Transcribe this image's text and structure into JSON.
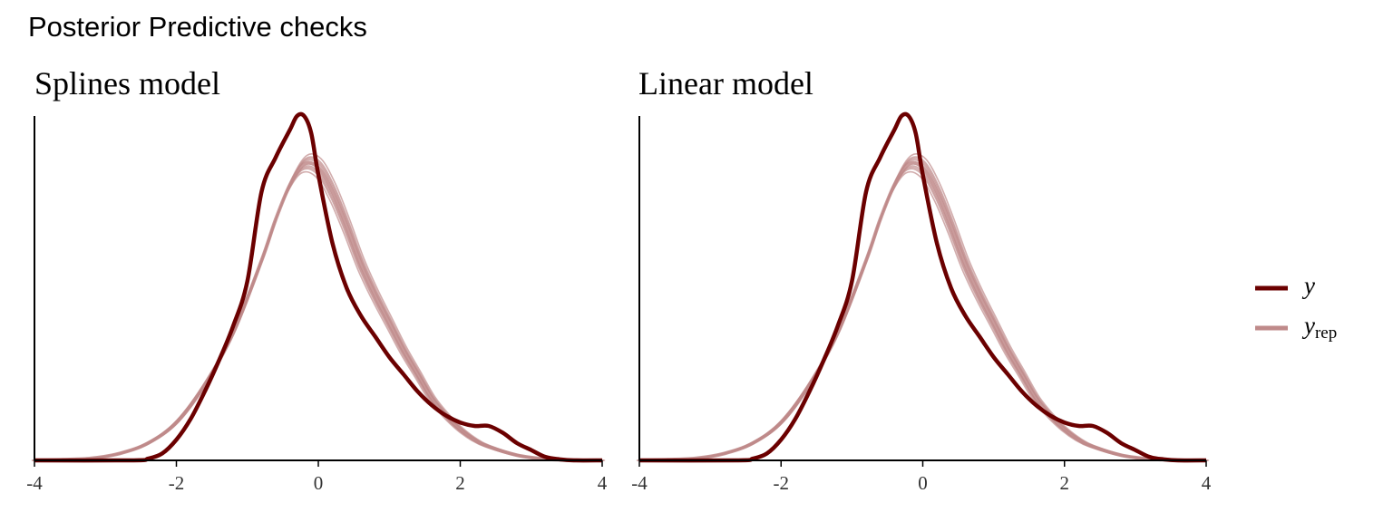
{
  "figure": {
    "title": "Posterior Predictive checks"
  },
  "legend": {
    "items": [
      {
        "symbol": "y",
        "subscript": "",
        "color": "#6b0000",
        "kind": "observed"
      },
      {
        "symbol": "y",
        "subscript": "rep",
        "color": "#bf8a8a",
        "kind": "replicated"
      }
    ]
  },
  "colors": {
    "observed": "#6b0000",
    "replicated": "#bf8a8a",
    "axis": "#000000"
  },
  "chart_data": [
    {
      "type": "line",
      "title": "Splines model",
      "xlabel": "",
      "ylabel": "",
      "xlim": [
        -4,
        4
      ],
      "ylim": [
        0,
        1
      ],
      "x_ticks": [
        -4,
        -2,
        0,
        2,
        4
      ],
      "x_tick_labels": [
        "-4",
        "-2",
        "0",
        "2",
        "4"
      ],
      "y_axis_ticks": "none",
      "grid": false,
      "series": [
        {
          "name": "y",
          "role": "observed",
          "x": [
            -4.0,
            -2.6,
            -2.4,
            -2.2,
            -2.0,
            -1.8,
            -1.6,
            -1.4,
            -1.2,
            -1.0,
            -0.8,
            -0.6,
            -0.4,
            -0.3,
            -0.2,
            -0.1,
            0.0,
            0.2,
            0.4,
            0.6,
            0.8,
            1.0,
            1.2,
            1.4,
            1.6,
            1.8,
            2.0,
            2.2,
            2.4,
            2.6,
            2.8,
            3.0,
            3.2,
            3.4,
            3.6,
            4.0
          ],
          "y": [
            0.0,
            0.0,
            0.005,
            0.02,
            0.06,
            0.12,
            0.2,
            0.29,
            0.39,
            0.52,
            0.78,
            0.88,
            0.96,
            1.0,
            1.0,
            0.95,
            0.83,
            0.63,
            0.5,
            0.42,
            0.36,
            0.3,
            0.25,
            0.2,
            0.16,
            0.13,
            0.11,
            0.1,
            0.1,
            0.08,
            0.05,
            0.03,
            0.01,
            0.003,
            0.0,
            0.0
          ]
        },
        {
          "name": "y_rep",
          "role": "replicated",
          "x": [
            -4.0,
            -3.6,
            -3.2,
            -2.8,
            -2.4,
            -2.0,
            -1.6,
            -1.2,
            -0.8,
            -0.6,
            -0.4,
            -0.2,
            0.0,
            0.2,
            0.4,
            0.6,
            0.8,
            1.0,
            1.2,
            1.4,
            1.6,
            1.8,
            2.0,
            2.2,
            2.4,
            2.8,
            3.2,
            3.6,
            4.0
          ],
          "y": [
            0.0,
            0.002,
            0.006,
            0.02,
            0.05,
            0.11,
            0.22,
            0.37,
            0.58,
            0.7,
            0.8,
            0.86,
            0.85,
            0.78,
            0.68,
            0.57,
            0.48,
            0.4,
            0.32,
            0.25,
            0.18,
            0.13,
            0.09,
            0.06,
            0.04,
            0.015,
            0.004,
            0.001,
            0.0
          ]
        }
      ]
    },
    {
      "type": "line",
      "title": "Linear model",
      "xlabel": "",
      "ylabel": "",
      "xlim": [
        -4,
        4
      ],
      "ylim": [
        0,
        1
      ],
      "x_ticks": [
        -4,
        -2,
        0,
        2,
        4
      ],
      "x_tick_labels": [
        "-4",
        "-2",
        "0",
        "2",
        "4"
      ],
      "y_axis_ticks": "none",
      "grid": false,
      "series": [
        {
          "name": "y",
          "role": "observed",
          "x": [
            -4.0,
            -2.6,
            -2.4,
            -2.2,
            -2.0,
            -1.8,
            -1.6,
            -1.4,
            -1.2,
            -1.0,
            -0.8,
            -0.6,
            -0.4,
            -0.3,
            -0.2,
            -0.1,
            0.0,
            0.2,
            0.4,
            0.6,
            0.8,
            1.0,
            1.2,
            1.4,
            1.6,
            1.8,
            2.0,
            2.2,
            2.4,
            2.6,
            2.8,
            3.0,
            3.2,
            3.4,
            3.6,
            4.0
          ],
          "y": [
            0.0,
            0.0,
            0.005,
            0.02,
            0.06,
            0.12,
            0.2,
            0.29,
            0.39,
            0.52,
            0.78,
            0.88,
            0.96,
            1.0,
            1.0,
            0.95,
            0.83,
            0.63,
            0.5,
            0.42,
            0.36,
            0.3,
            0.25,
            0.2,
            0.16,
            0.13,
            0.11,
            0.1,
            0.1,
            0.08,
            0.05,
            0.03,
            0.01,
            0.003,
            0.0,
            0.0
          ]
        },
        {
          "name": "y_rep",
          "role": "replicated",
          "x": [
            -4.0,
            -3.6,
            -3.2,
            -2.8,
            -2.4,
            -2.0,
            -1.6,
            -1.2,
            -0.8,
            -0.6,
            -0.4,
            -0.2,
            0.0,
            0.2,
            0.4,
            0.6,
            0.8,
            1.0,
            1.2,
            1.4,
            1.6,
            1.8,
            2.0,
            2.2,
            2.4,
            2.8,
            3.2,
            3.6,
            4.0
          ],
          "y": [
            0.0,
            0.002,
            0.006,
            0.02,
            0.05,
            0.11,
            0.22,
            0.37,
            0.58,
            0.7,
            0.8,
            0.86,
            0.85,
            0.78,
            0.68,
            0.57,
            0.48,
            0.4,
            0.32,
            0.25,
            0.18,
            0.13,
            0.09,
            0.06,
            0.04,
            0.015,
            0.004,
            0.001,
            0.0
          ]
        }
      ]
    }
  ]
}
